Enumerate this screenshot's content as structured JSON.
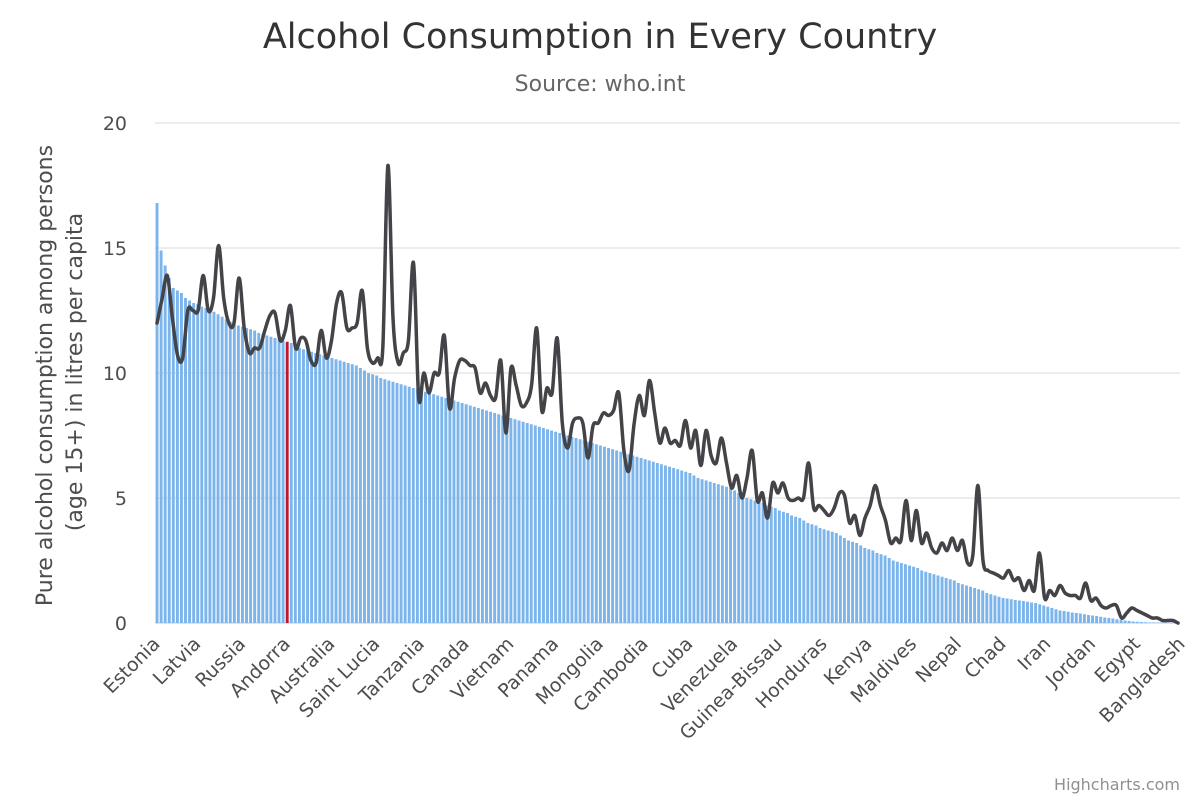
{
  "chart_data": {
    "type": "bar",
    "title": "Alcohol Consumption in Every Country",
    "subtitle": "Source: who.int",
    "ylabel": "Pure alcohol consumption among persons (age 15+) in litres per capita",
    "ylabel_lines": [
      "Pure alcohol consumption among persons",
      "(age 15+) in litres per capita"
    ],
    "ylim": [
      0,
      20
    ],
    "yticks": [
      0,
      5,
      10,
      15,
      20
    ],
    "grid": true,
    "legend": "none",
    "credits": "Highcharts.com",
    "colors": {
      "bar": "#7cb5ec",
      "highlight": "#c0162e",
      "line": "#434348",
      "grid": "#e0e0e0"
    },
    "highlight_category": "Andorra",
    "labeled_categories": [
      {
        "index": 0,
        "label": "Estonia"
      },
      {
        "index": 10,
        "label": "Latvia"
      },
      {
        "index": 21,
        "label": "Russia"
      },
      {
        "index": 32,
        "label": "Andorra"
      },
      {
        "index": 43,
        "label": "Australia"
      },
      {
        "index": 54,
        "label": "Saint Lucia"
      },
      {
        "index": 65,
        "label": "Tanzania"
      },
      {
        "index": 76,
        "label": "Canada"
      },
      {
        "index": 87,
        "label": "Vietnam"
      },
      {
        "index": 98,
        "label": "Panama"
      },
      {
        "index": 109,
        "label": "Mongolia"
      },
      {
        "index": 120,
        "label": "Cambodia"
      },
      {
        "index": 131,
        "label": "Cuba"
      },
      {
        "index": 142,
        "label": "Venezuela"
      },
      {
        "index": 153,
        "label": "Guinea-Bissau"
      },
      {
        "index": 164,
        "label": "Honduras"
      },
      {
        "index": 175,
        "label": "Kenya"
      },
      {
        "index": 186,
        "label": "Maldives"
      },
      {
        "index": 197,
        "label": "Nepal"
      },
      {
        "index": 208,
        "label": "Chad"
      },
      {
        "index": 219,
        "label": "Iran"
      },
      {
        "index": 230,
        "label": "Jordan"
      },
      {
        "index": 241,
        "label": "Egypt"
      },
      {
        "index": 252,
        "label": "Bangladesh"
      }
    ],
    "bar_values": [
      16.8,
      14.9,
      14.3,
      13.8,
      13.4,
      13.3,
      13.2,
      13.0,
      12.9,
      12.8,
      12.75,
      12.65,
      12.6,
      12.55,
      12.45,
      12.35,
      12.25,
      12.15,
      12.05,
      11.95,
      11.9,
      11.85,
      11.8,
      11.75,
      11.7,
      11.6,
      11.55,
      11.5,
      11.45,
      11.4,
      11.35,
      11.3,
      11.25,
      11.2,
      11.1,
      11.0,
      10.95,
      10.9,
      10.85,
      10.8,
      10.75,
      10.7,
      10.65,
      10.6,
      10.55,
      10.5,
      10.45,
      10.4,
      10.35,
      10.3,
      10.2,
      10.1,
      10.0,
      9.95,
      9.9,
      9.8,
      9.75,
      9.7,
      9.65,
      9.6,
      9.55,
      9.5,
      9.45,
      9.4,
      9.35,
      9.3,
      9.25,
      9.2,
      9.15,
      9.1,
      9.05,
      9.0,
      8.95,
      8.9,
      8.85,
      8.8,
      8.75,
      8.7,
      8.65,
      8.6,
      8.55,
      8.5,
      8.45,
      8.4,
      8.35,
      8.3,
      8.25,
      8.2,
      8.15,
      8.1,
      8.05,
      8.0,
      7.95,
      7.9,
      7.85,
      7.8,
      7.75,
      7.7,
      7.65,
      7.6,
      7.55,
      7.5,
      7.45,
      7.4,
      7.35,
      7.3,
      7.25,
      7.2,
      7.15,
      7.1,
      7.05,
      7.0,
      6.95,
      6.9,
      6.85,
      6.8,
      6.75,
      6.7,
      6.65,
      6.6,
      6.55,
      6.5,
      6.45,
      6.4,
      6.35,
      6.3,
      6.25,
      6.2,
      6.15,
      6.1,
      6.05,
      6.0,
      5.9,
      5.8,
      5.75,
      5.7,
      5.65,
      5.6,
      5.55,
      5.5,
      5.45,
      5.4,
      5.3,
      5.2,
      5.1,
      5.0,
      4.95,
      4.9,
      4.85,
      4.8,
      4.7,
      4.65,
      4.6,
      4.5,
      4.45,
      4.4,
      4.3,
      4.25,
      4.2,
      4.1,
      4.0,
      3.95,
      3.9,
      3.8,
      3.75,
      3.7,
      3.65,
      3.6,
      3.5,
      3.4,
      3.3,
      3.25,
      3.2,
      3.1,
      3.0,
      2.95,
      2.9,
      2.8,
      2.75,
      2.7,
      2.6,
      2.5,
      2.45,
      2.4,
      2.35,
      2.3,
      2.25,
      2.2,
      2.1,
      2.05,
      2.0,
      1.95,
      1.9,
      1.85,
      1.8,
      1.75,
      1.7,
      1.6,
      1.55,
      1.5,
      1.45,
      1.4,
      1.35,
      1.3,
      1.2,
      1.15,
      1.1,
      1.05,
      1.0,
      0.98,
      0.95,
      0.92,
      0.9,
      0.88,
      0.85,
      0.82,
      0.8,
      0.75,
      0.7,
      0.65,
      0.6,
      0.55,
      0.5,
      0.48,
      0.45,
      0.42,
      0.4,
      0.38,
      0.35,
      0.32,
      0.3,
      0.28,
      0.25,
      0.22,
      0.2,
      0.18,
      0.15,
      0.12,
      0.1,
      0.08,
      0.06,
      0.05,
      0.04,
      0.03,
      0.02,
      0.02,
      0.01,
      0.01,
      0.01,
      0.01,
      0.01,
      0.0
    ],
    "line_points": [
      [
        0,
        12.0
      ],
      [
        1,
        13.0
      ],
      [
        2,
        13.9
      ],
      [
        3,
        12.2
      ],
      [
        4,
        10.7
      ],
      [
        5,
        10.6
      ],
      [
        6,
        12.5
      ],
      [
        7,
        12.5
      ],
      [
        8,
        12.5
      ],
      [
        9,
        13.9
      ],
      [
        10,
        12.5
      ],
      [
        11,
        13.0
      ],
      [
        12,
        15.1
      ],
      [
        13,
        13.0
      ],
      [
        14,
        12.0
      ],
      [
        15,
        12.0
      ],
      [
        16,
        13.8
      ],
      [
        17,
        11.8
      ],
      [
        18,
        10.8
      ],
      [
        19,
        11.0
      ],
      [
        20,
        11.0
      ],
      [
        21,
        11.7
      ],
      [
        22,
        12.3
      ],
      [
        23,
        12.4
      ],
      [
        24,
        11.3
      ],
      [
        25,
        11.7
      ],
      [
        26,
        12.7
      ],
      [
        27,
        11.0
      ],
      [
        28,
        11.4
      ],
      [
        29,
        11.3
      ],
      [
        30,
        10.5
      ],
      [
        31,
        10.4
      ],
      [
        32,
        11.7
      ],
      [
        33,
        10.6
      ],
      [
        34,
        11.3
      ],
      [
        35,
        12.8
      ],
      [
        36,
        13.2
      ],
      [
        37,
        11.8
      ],
      [
        38,
        11.8
      ],
      [
        39,
        12.0
      ],
      [
        40,
        13.3
      ],
      [
        41,
        11.0
      ],
      [
        42,
        10.4
      ],
      [
        43,
        10.6
      ],
      [
        44,
        11.0
      ],
      [
        45,
        18.3
      ],
      [
        46,
        12.2
      ],
      [
        47,
        10.4
      ],
      [
        48,
        10.8
      ],
      [
        49,
        11.3
      ],
      [
        50,
        14.4
      ],
      [
        51,
        9.0
      ],
      [
        52,
        10.0
      ],
      [
        53,
        9.2
      ],
      [
        54,
        10.0
      ],
      [
        55,
        10.0
      ],
      [
        56,
        11.5
      ],
      [
        57,
        8.6
      ],
      [
        58,
        9.8
      ],
      [
        59,
        10.5
      ],
      [
        60,
        10.5
      ],
      [
        61,
        10.3
      ],
      [
        62,
        10.2
      ],
      [
        63,
        9.2
      ],
      [
        64,
        9.6
      ],
      [
        65,
        9.1
      ],
      [
        66,
        9.0
      ],
      [
        67,
        10.5
      ],
      [
        68,
        7.6
      ],
      [
        69,
        10.2
      ],
      [
        70,
        9.5
      ],
      [
        71,
        8.7
      ],
      [
        72,
        8.8
      ],
      [
        73,
        9.5
      ],
      [
        74,
        11.8
      ],
      [
        75,
        8.5
      ],
      [
        76,
        9.4
      ],
      [
        77,
        9.2
      ],
      [
        78,
        11.4
      ],
      [
        79,
        8.0
      ],
      [
        80,
        7.0
      ],
      [
        81,
        8.0
      ],
      [
        82,
        8.2
      ],
      [
        83,
        8.0
      ],
      [
        84,
        6.6
      ],
      [
        85,
        7.9
      ],
      [
        86,
        8.0
      ],
      [
        87,
        8.4
      ],
      [
        88,
        8.3
      ],
      [
        89,
        8.5
      ],
      [
        90,
        9.2
      ],
      [
        91,
        6.9
      ],
      [
        92,
        6.1
      ],
      [
        93,
        8.0
      ],
      [
        94,
        9.1
      ],
      [
        95,
        8.3
      ],
      [
        96,
        9.7
      ],
      [
        97,
        8.4
      ],
      [
        98,
        7.2
      ],
      [
        99,
        7.8
      ],
      [
        100,
        7.2
      ],
      [
        101,
        7.3
      ],
      [
        102,
        7.1
      ],
      [
        103,
        8.1
      ],
      [
        104,
        7.0
      ],
      [
        105,
        7.7
      ],
      [
        106,
        6.3
      ],
      [
        107,
        7.7
      ],
      [
        108,
        6.7
      ],
      [
        109,
        6.4
      ],
      [
        110,
        7.4
      ],
      [
        111,
        6.4
      ],
      [
        112,
        5.4
      ],
      [
        113,
        5.9
      ],
      [
        114,
        5.0
      ],
      [
        115,
        5.8
      ],
      [
        116,
        6.9
      ],
      [
        117,
        4.9
      ],
      [
        118,
        5.2
      ],
      [
        119,
        4.2
      ],
      [
        120,
        5.6
      ],
      [
        121,
        5.2
      ],
      [
        122,
        5.6
      ],
      [
        123,
        5.0
      ],
      [
        124,
        4.9
      ],
      [
        125,
        5.0
      ],
      [
        126,
        5.0
      ],
      [
        127,
        6.4
      ],
      [
        128,
        4.6
      ],
      [
        129,
        4.7
      ],
      [
        130,
        4.5
      ],
      [
        131,
        4.3
      ],
      [
        132,
        4.6
      ],
      [
        133,
        5.2
      ],
      [
        134,
        5.1
      ],
      [
        135,
        4.0
      ],
      [
        136,
        4.3
      ],
      [
        137,
        3.5
      ],
      [
        138,
        4.2
      ],
      [
        139,
        4.7
      ],
      [
        140,
        5.5
      ],
      [
        141,
        4.7
      ],
      [
        142,
        4.1
      ],
      [
        143,
        3.2
      ],
      [
        144,
        3.4
      ],
      [
        145,
        3.3
      ],
      [
        146,
        4.9
      ],
      [
        147,
        3.3
      ],
      [
        148,
        4.5
      ],
      [
        149,
        3.2
      ],
      [
        150,
        3.6
      ],
      [
        151,
        3.0
      ],
      [
        152,
        2.8
      ],
      [
        153,
        3.2
      ],
      [
        154,
        2.9
      ],
      [
        155,
        3.4
      ],
      [
        156,
        2.9
      ],
      [
        157,
        3.3
      ],
      [
        158,
        2.4
      ],
      [
        159,
        2.7
      ],
      [
        160,
        5.5
      ],
      [
        161,
        2.5
      ],
      [
        162,
        2.1
      ],
      [
        163,
        2.0
      ],
      [
        164,
        1.9
      ],
      [
        165,
        1.8
      ],
      [
        166,
        2.1
      ],
      [
        167,
        1.7
      ],
      [
        168,
        1.8
      ],
      [
        169,
        1.3
      ],
      [
        170,
        1.7
      ],
      [
        171,
        1.3
      ],
      [
        172,
        2.8
      ],
      [
        173,
        1.0
      ],
      [
        174,
        1.3
      ],
      [
        175,
        1.1
      ],
      [
        176,
        1.5
      ],
      [
        177,
        1.2
      ],
      [
        178,
        1.1
      ],
      [
        179,
        1.1
      ],
      [
        180,
        1.0
      ],
      [
        181,
        1.6
      ],
      [
        182,
        0.9
      ],
      [
        183,
        1.0
      ],
      [
        184,
        0.7
      ],
      [
        185,
        0.6
      ],
      [
        186,
        0.7
      ],
      [
        187,
        0.7
      ],
      [
        188,
        0.2
      ],
      [
        189,
        0.4
      ],
      [
        190,
        0.6
      ],
      [
        191,
        0.5
      ],
      [
        192,
        0.4
      ],
      [
        193,
        0.3
      ],
      [
        194,
        0.2
      ],
      [
        195,
        0.2
      ],
      [
        196,
        0.1
      ],
      [
        197,
        0.1
      ],
      [
        198,
        0.1
      ],
      [
        199,
        0.0
      ]
    ]
  }
}
